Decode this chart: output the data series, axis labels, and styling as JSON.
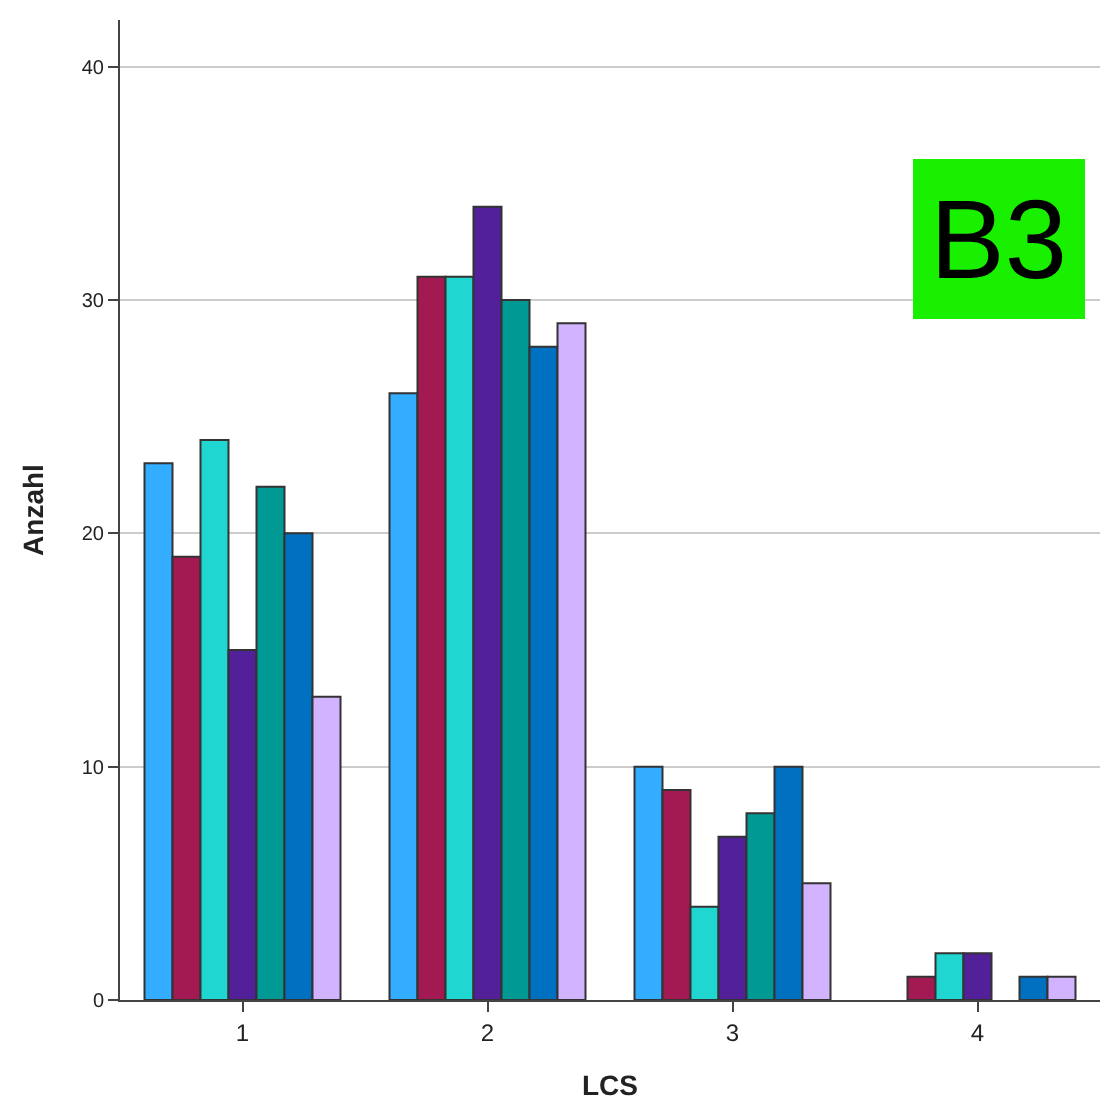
{
  "chart_data": {
    "type": "bar",
    "xlabel": "LCS",
    "ylabel": "Anzahl",
    "categories": [
      "1",
      "2",
      "3",
      "4"
    ],
    "series": [
      {
        "color": "#33adff",
        "values": [
          23,
          26,
          10,
          null
        ]
      },
      {
        "color": "#a31a52",
        "values": [
          19,
          31,
          9,
          1
        ]
      },
      {
        "color": "#1fd6d1",
        "values": [
          24,
          31,
          4,
          2
        ]
      },
      {
        "color": "#52219a",
        "values": [
          15,
          34,
          7,
          2
        ]
      },
      {
        "color": "#009994",
        "values": [
          22,
          30,
          8,
          null
        ]
      },
      {
        "color": "#0070c0",
        "values": [
          20,
          28,
          10,
          1
        ]
      },
      {
        "color": "#d1b3ff",
        "values": [
          13,
          29,
          5,
          1
        ]
      }
    ],
    "ylim": [
      0,
      42
    ],
    "yticks": [
      0,
      10,
      20,
      30,
      40
    ],
    "grid": "y",
    "annotations": [
      "B3"
    ]
  }
}
